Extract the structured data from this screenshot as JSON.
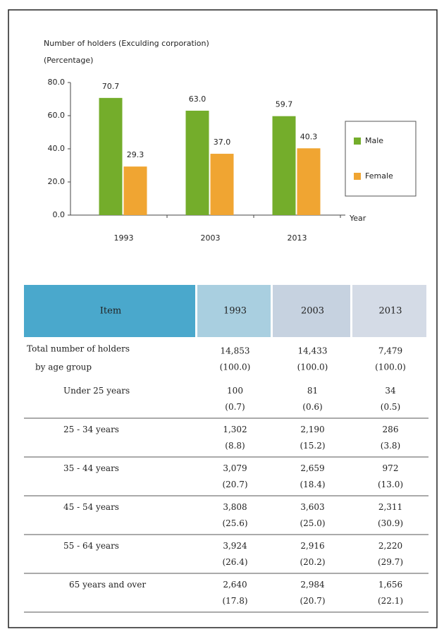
{
  "chart_data": {
    "type": "bar",
    "title": "Number of holders (Exculding corporation)",
    "y_label": "(Percentage)",
    "x_label": "Year",
    "categories": [
      "1993",
      "2003",
      "2013"
    ],
    "series": [
      {
        "name": "Male",
        "color": "#74ad2b",
        "values": [
          70.7,
          63.0,
          59.7
        ],
        "value_labels": [
          "70.7",
          "63.0",
          "59.7"
        ]
      },
      {
        "name": "Female",
        "color": "#f0a532",
        "values": [
          29.3,
          37.0,
          40.3
        ],
        "value_labels": [
          "29.3",
          "37.0",
          "40.3"
        ]
      }
    ],
    "ylim": [
      0,
      80
    ],
    "yticks": [
      {
        "value": 0,
        "label": "0.0"
      },
      {
        "value": 20,
        "label": "20.0"
      },
      {
        "value": 40,
        "label": "40.0"
      },
      {
        "value": 60,
        "label": "60.0"
      },
      {
        "value": 80,
        "label": "80.0"
      }
    ],
    "legend": "right"
  },
  "table": {
    "header": [
      "Item",
      "1993",
      "2003",
      "2013"
    ],
    "rows": [
      {
        "item": [
          "Total number of holders",
          "by age group"
        ],
        "cells": [
          [
            "14,853",
            "(100.0)"
          ],
          [
            "14,433",
            "(100.0)"
          ],
          [
            "7,479",
            "(100.0)"
          ]
        ]
      },
      {
        "item": [
          "Under 25 years"
        ],
        "cells": [
          [
            "100",
            "(0.7)"
          ],
          [
            "81",
            "(0.6)"
          ],
          [
            "34",
            "(0.5)"
          ]
        ]
      },
      {
        "item": [
          "25 - 34 years"
        ],
        "cells": [
          [
            "1,302",
            "(8.8)"
          ],
          [
            "2,190",
            "(15.2)"
          ],
          [
            "286",
            "(3.8)"
          ]
        ]
      },
      {
        "item": [
          "35 - 44 years"
        ],
        "cells": [
          [
            "3,079",
            "(20.7)"
          ],
          [
            "2,659",
            "(18.4)"
          ],
          [
            "972",
            "(13.0)"
          ]
        ]
      },
      {
        "item": [
          "45 - 54 years"
        ],
        "cells": [
          [
            "3,808",
            "(25.6)"
          ],
          [
            "3,603",
            "(25.0)"
          ],
          [
            "2,311",
            "(30.9)"
          ]
        ]
      },
      {
        "item": [
          "55 - 64 years"
        ],
        "cells": [
          [
            "3,924",
            "(26.4)"
          ],
          [
            "2,916",
            "(20.2)"
          ],
          [
            "2,220",
            "(29.7)"
          ]
        ]
      },
      {
        "item": [
          "65 years and over"
        ],
        "cells": [
          [
            "2,640",
            "(17.8)"
          ],
          [
            "2,984",
            "(20.7)"
          ],
          [
            "1,656",
            "(22.1)"
          ]
        ]
      }
    ]
  }
}
